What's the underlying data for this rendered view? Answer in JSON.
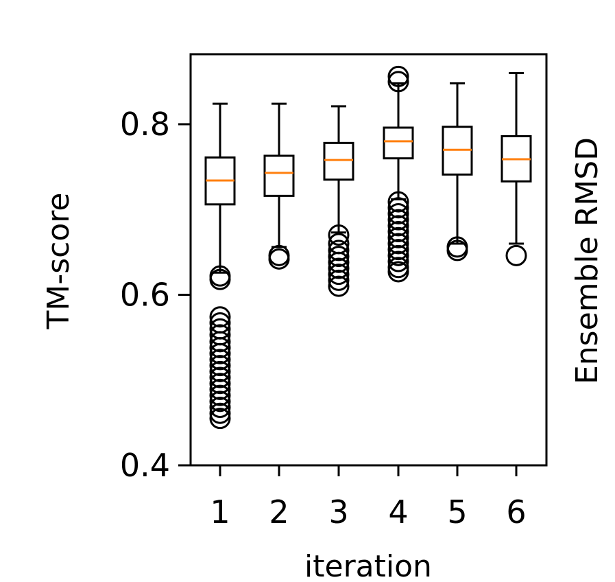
{
  "chart_data": {
    "type": "box",
    "xlabel": "iteration",
    "ylabel": "TM-score",
    "right_label": "Ensemble RMSD",
    "ylim": [
      0.4,
      0.88
    ],
    "yticks": [
      "0.4",
      "0.6",
      "0.8"
    ],
    "yticks_values": [
      0.4,
      0.6,
      0.8
    ],
    "categories": [
      "1",
      "2",
      "3",
      "4",
      "5",
      "6"
    ],
    "grid": false,
    "colors": {
      "box": "#000000",
      "median": "#ff7f0e"
    },
    "boxes": [
      {
        "category": "1",
        "whisker_low": 0.626,
        "q1": 0.706,
        "median": 0.734,
        "q3": 0.761,
        "whisker_high": 0.824,
        "outliers_high": [],
        "outliers_low": [
          0.622,
          0.618,
          0.574,
          0.567,
          0.56,
          0.553,
          0.545,
          0.538,
          0.531,
          0.524,
          0.517,
          0.51,
          0.503,
          0.496,
          0.489,
          0.482,
          0.475,
          0.468,
          0.461,
          0.455
        ]
      },
      {
        "category": "2",
        "whisker_low": 0.656,
        "q1": 0.716,
        "median": 0.743,
        "q3": 0.763,
        "whisker_high": 0.824,
        "outliers_high": [],
        "outliers_low": [
          0.646,
          0.642
        ]
      },
      {
        "category": "3",
        "whisker_low": 0.673,
        "q1": 0.735,
        "median": 0.758,
        "q3": 0.778,
        "whisker_high": 0.821,
        "outliers_high": [],
        "outliers_low": [
          0.67,
          0.66,
          0.652,
          0.645,
          0.638,
          0.631,
          0.624,
          0.617,
          0.61
        ]
      },
      {
        "category": "4",
        "whisker_low": 0.712,
        "q1": 0.76,
        "median": 0.78,
        "q3": 0.796,
        "whisker_high": 0.848,
        "outliers_high": [
          0.856,
          0.85
        ],
        "outliers_low": [
          0.709,
          0.702,
          0.695,
          0.688,
          0.681,
          0.674,
          0.667,
          0.66,
          0.653,
          0.646,
          0.639,
          0.632,
          0.627
        ]
      },
      {
        "category": "5",
        "whisker_low": 0.66,
        "q1": 0.741,
        "median": 0.77,
        "q3": 0.797,
        "whisker_high": 0.848,
        "outliers_high": [],
        "outliers_low": [
          0.656,
          0.652
        ]
      },
      {
        "category": "6",
        "whisker_low": 0.66,
        "q1": 0.733,
        "median": 0.759,
        "q3": 0.786,
        "whisker_high": 0.86,
        "outliers_high": [],
        "outliers_low": [
          0.646
        ]
      }
    ]
  }
}
